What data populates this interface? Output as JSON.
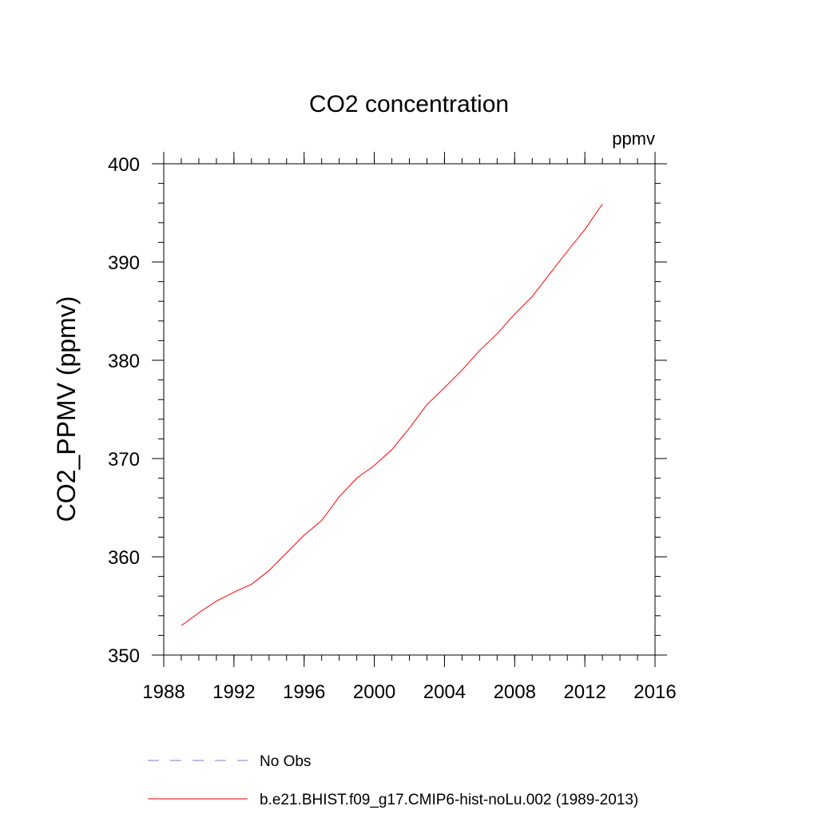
{
  "chart_data": {
    "type": "line",
    "title": "CO2 concentration",
    "units_label": "ppmv",
    "xlabel": "",
    "ylabel": "CO2_PPMV  (ppmv)",
    "xlim": [
      1988,
      2016
    ],
    "ylim": [
      350,
      400
    ],
    "x_ticks": [
      "1988",
      "1992",
      "1996",
      "2000",
      "2004",
      "2008",
      "2012",
      "2016"
    ],
    "y_ticks": [
      "350",
      "360",
      "370",
      "380",
      "390",
      "400"
    ],
    "x_minor_step": 1,
    "y_minor_step": 2,
    "grid": false,
    "legend_position": "bottom",
    "colors": {
      "line": "#ff0000",
      "obs": "#7b7bd6",
      "axis": "#000000"
    },
    "series": [
      {
        "name": "No Obs",
        "style": "dashed",
        "x": [],
        "y": []
      },
      {
        "name": "b.e21.BHIST.f09_g17.CMIP6-hist-noLu.002 (1989-2013)",
        "style": "solid",
        "x": [
          1989,
          1990,
          1991,
          1992,
          1993,
          1994,
          1995,
          1996,
          1997,
          1998,
          1999,
          2000,
          2001,
          2002,
          2003,
          2004,
          2005,
          2006,
          2007,
          2008,
          2009,
          2010,
          2011,
          2012,
          2013
        ],
        "y": [
          353.0,
          354.3,
          355.5,
          356.4,
          357.2,
          358.6,
          360.4,
          362.2,
          363.7,
          366.1,
          368.0,
          369.3,
          370.9,
          373.1,
          375.5,
          377.2,
          379.0,
          381.0,
          382.7,
          384.7,
          386.5,
          388.8,
          391.1,
          393.3,
          395.9
        ]
      }
    ]
  }
}
